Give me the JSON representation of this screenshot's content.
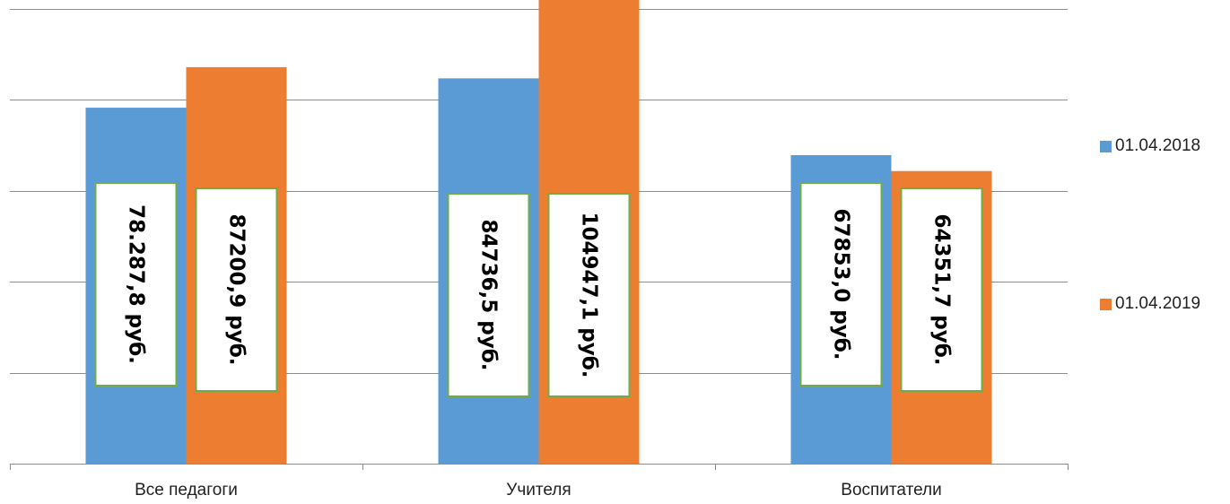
{
  "chart_data": {
    "type": "bar",
    "categories": [
      "Все педагоги",
      "Учителя",
      "Воспитатели"
    ],
    "series": [
      {
        "name": "01.04.2018",
        "color": "#5b9bd5",
        "values": [
          78287.8,
          84736.5,
          67853.0
        ],
        "labels": [
          "78.287,8 руб.",
          "84736,5 руб.",
          "67853,0 руб."
        ]
      },
      {
        "name": "01.04.2019",
        "color": "#ed7d31",
        "values": [
          87200.9,
          104947.1,
          64351.7
        ],
        "labels": [
          "87200,9 руб.",
          "104947,1 руб.",
          "64351,7 руб."
        ]
      }
    ],
    "ylim": [
      0,
      100000
    ],
    "grid": true,
    "legend_position": "right",
    "data_label_border_color": "#70ad47"
  }
}
